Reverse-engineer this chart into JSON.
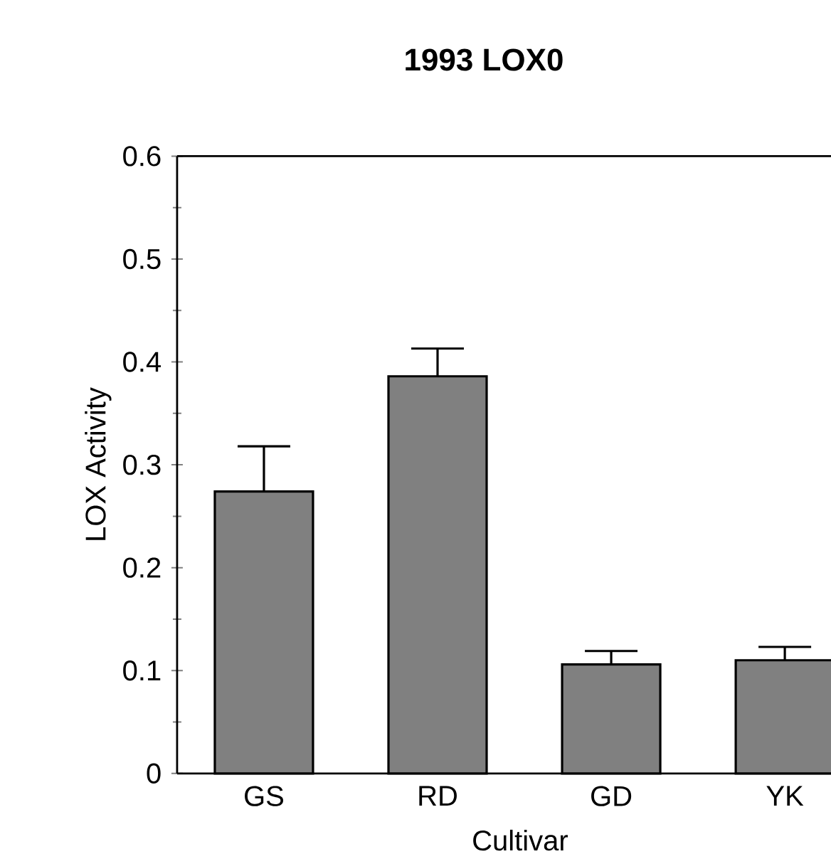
{
  "chart_data": {
    "type": "bar",
    "title": "1993 LOX0",
    "xlabel": "Cultivar",
    "ylabel": "LOX Activity",
    "categories": [
      "GS",
      "RD",
      "GD",
      "YK"
    ],
    "values": [
      0.274,
      0.386,
      0.106,
      0.11
    ],
    "errors": [
      [
        0.274,
        0.318
      ],
      [
        0.386,
        0.413
      ],
      [
        0.106,
        0.119
      ],
      [
        0.11,
        0.123
      ]
    ],
    "color": "#808080",
    "ylim": [
      0,
      0.6
    ],
    "yticks": [
      0,
      0.1,
      0.2,
      0.3,
      0.4,
      0.5,
      0.6
    ],
    "grid": false
  }
}
